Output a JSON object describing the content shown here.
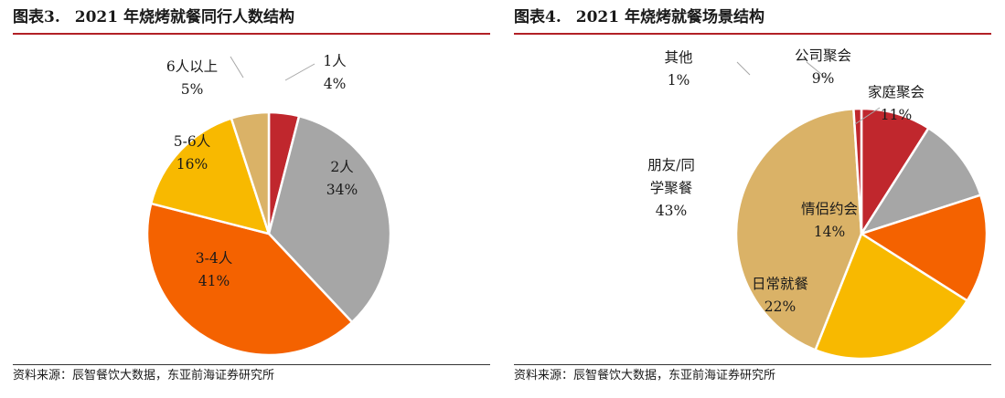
{
  "panels": [
    {
      "fig_label": "图表3.",
      "title": "2021 年烧烤就餐同行人数结构",
      "source": "资料来源：辰智餐饮大数据，东亚前海证券研究所"
    },
    {
      "fig_label": "图表4.",
      "title": "2021 年烧烤就餐场景结构",
      "source": "资料来源：辰智餐饮大数据，东亚前海证券研究所"
    }
  ],
  "chart_data": [
    {
      "type": "pie",
      "title": "2021 年烧烤就餐同行人数结构",
      "slices": [
        {
          "label": "1人",
          "value": 4,
          "value_label": "4%",
          "color": "#c0272d"
        },
        {
          "label": "2人",
          "value": 34,
          "value_label": "34%",
          "color": "#a6a6a6"
        },
        {
          "label": "3-4人",
          "value": 41,
          "value_label": "41%",
          "color": "#f46200"
        },
        {
          "label": "5-6人",
          "value": 16,
          "value_label": "16%",
          "color": "#f8b900"
        },
        {
          "label": "6人以上",
          "value": 5,
          "value_label": "5%",
          "color": "#dab267"
        }
      ]
    },
    {
      "type": "pie",
      "title": "2021 年烧烤就餐场景结构",
      "slices": [
        {
          "label": "公司聚会",
          "value": 9,
          "value_label": "9%",
          "color": "#c0272d"
        },
        {
          "label": "家庭聚会",
          "value": 11,
          "value_label": "11%",
          "color": "#a6a6a6"
        },
        {
          "label": "情侣约会",
          "value": 14,
          "value_label": "14%",
          "color": "#f46200"
        },
        {
          "label": "日常就餐",
          "value": 22,
          "value_label": "22%",
          "color": "#f8b900"
        },
        {
          "label": "朋友/同学聚餐",
          "value": 43,
          "value_label": "43%",
          "color": "#dab267"
        },
        {
          "label": "其他",
          "value": 1,
          "value_label": "1%",
          "color": "#c0272d"
        }
      ]
    }
  ]
}
